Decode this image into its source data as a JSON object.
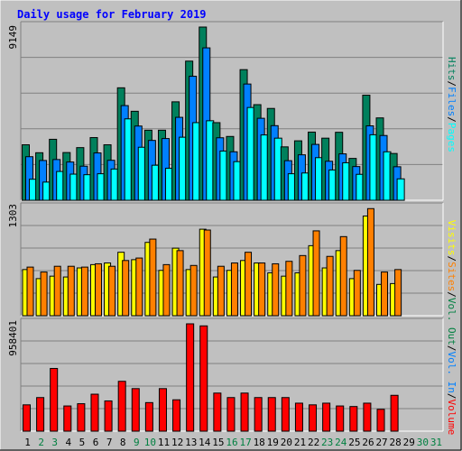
{
  "chart_data": {
    "type": "bar",
    "title": "Daily usage for February 2019",
    "colors": {
      "background": "#c0c0c0",
      "title": "#0000ff",
      "axis_day": "#000000",
      "axis_weekend": "#008040",
      "hits": "#00805c",
      "files": "#0080ff",
      "pages": "#00ffff",
      "visits": "#ffff00",
      "sites": "#ff8000",
      "volume": "#ff0000"
    },
    "days": [
      "1",
      "2",
      "3",
      "4",
      "5",
      "6",
      "7",
      "8",
      "9",
      "10",
      "11",
      "12",
      "13",
      "14",
      "15",
      "16",
      "17",
      "18",
      "19",
      "20",
      "21",
      "22",
      "23",
      "24",
      "25",
      "26",
      "27",
      "28",
      "29",
      "30",
      "31"
    ],
    "weekend_days": [
      "2",
      "3",
      "9",
      "10",
      "16",
      "17",
      "23",
      "24",
      "30",
      "31"
    ],
    "panels": {
      "top": {
        "max_label": "9149",
        "ylim": [
          0,
          9149
        ],
        "series": [
          {
            "name": "Hits",
            "values": [
              2930,
              2510,
              3220,
              2520,
              2780,
              3310,
              2930,
              5940,
              4700,
              3700,
              3700,
              5200,
              7350,
              9149,
              4100,
              3370,
              6900,
              5050,
              4850,
              2820,
              3140,
              3600,
              3280,
              3590,
              2210,
              5550,
              4350,
              2470,
              0,
              0,
              0
            ]
          },
          {
            "name": "Files",
            "values": [
              2300,
              2100,
              2150,
              2020,
              1800,
              2500,
              2110,
              5000,
              3920,
              3160,
              3260,
              4380,
              6550,
              8050,
              3300,
              2560,
              6140,
              4330,
              3940,
              2090,
              2400,
              2950,
              2060,
              2450,
              1780,
              3930,
              3420,
              1770,
              0,
              0,
              0
            ]
          },
          {
            "name": "Pages",
            "values": [
              1110,
              960,
              1520,
              1380,
              1350,
              1400,
              1650,
              4300,
              2800,
              1850,
              1690,
              3330,
              4100,
              4200,
              2600,
              2040,
              4900,
              3450,
              3280,
              1400,
              1440,
              2250,
              1600,
              1980,
              1370,
              3460,
              2560,
              1130,
              0,
              0,
              0
            ]
          }
        ]
      },
      "middle": {
        "max_label": "1303",
        "ylim": [
          0,
          1303
        ],
        "series": [
          {
            "name": "Visits",
            "values": [
              560,
              450,
              480,
              470,
              580,
              620,
              640,
              770,
              680,
              890,
              550,
              820,
              560,
              1050,
              470,
              550,
              670,
              640,
              520,
              480,
              520,
              850,
              580,
              790,
              450,
              1210,
              380,
              390,
              0,
              0,
              0
            ]
          },
          {
            "name": "Sites",
            "values": [
              590,
              530,
              600,
              600,
              590,
              630,
              600,
              670,
              700,
              930,
              620,
              790,
              610,
              1040,
              600,
              640,
              770,
              640,
              630,
              660,
              730,
              1030,
              720,
              960,
              550,
              1300,
              530,
              560,
              0,
              0,
              0
            ]
          }
        ]
      },
      "bottom": {
        "max_label": "958401",
        "ylim": [
          0,
          958401
        ],
        "series": [
          {
            "name": "Volume",
            "values": [
              235000,
              300000,
              560000,
              225000,
              245000,
              330000,
              270000,
              445000,
              380000,
              255000,
              380000,
              280000,
              958401,
              940000,
              340000,
              300000,
              340000,
              300000,
              300000,
              300000,
              250000,
              235000,
              250000,
              225000,
              220000,
              250000,
              195000,
              320000,
              0,
              0,
              0
            ]
          }
        ]
      }
    },
    "labels": {
      "hits": "Hits",
      "files": "Files",
      "pages": "Pages",
      "visits": "Visits",
      "sites": "Sites",
      "kbytes_in": "Vol. In",
      "kbytes_out": "Vol. Out",
      "volume": "Volume",
      "sep": "/"
    }
  }
}
